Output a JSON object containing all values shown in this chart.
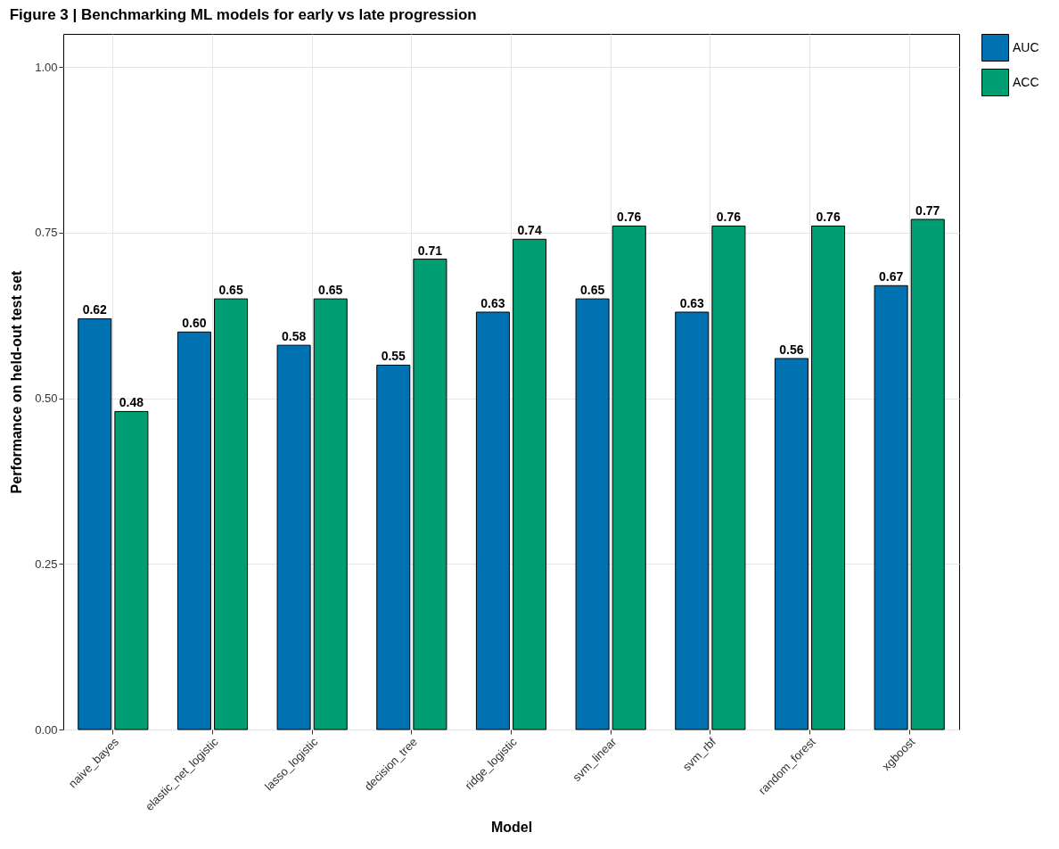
{
  "chart_data": {
    "type": "bar",
    "title": "Figure 3 | Benchmarking ML models for early vs late progression",
    "xlabel": "Model",
    "ylabel": "Performance on held-out test set",
    "categories": [
      "naive_bayes",
      "elastic_net_logistic",
      "lasso_logistic",
      "decision_tree",
      "ridge_logistic",
      "svm_linear",
      "svm_rbf",
      "random_forest",
      "xgboost"
    ],
    "series": [
      {
        "name": "AUC",
        "color": "#0072b2",
        "values": [
          0.62,
          0.6,
          0.58,
          0.55,
          0.63,
          0.65,
          0.63,
          0.56,
          0.67
        ],
        "value_labels": [
          "0.62",
          "0.60",
          "0.58",
          "0.55",
          "0.63",
          "0.65",
          "0.63",
          "0.56",
          "0.67"
        ]
      },
      {
        "name": "ACC",
        "color": "#009e73",
        "values": [
          0.48,
          0.65,
          0.65,
          0.71,
          0.74,
          0.76,
          0.76,
          0.76,
          0.77
        ],
        "value_labels": [
          "0.48",
          "0.65",
          "0.65",
          "0.71",
          "0.74",
          "0.76",
          "0.76",
          "0.76",
          "0.77"
        ]
      }
    ],
    "ylim": [
      0,
      1.05
    ],
    "yticks": [
      {
        "value": 0,
        "label": "0.00"
      },
      {
        "value": 0.25,
        "label": "0.25"
      },
      {
        "value": 0.5,
        "label": "0.50"
      },
      {
        "value": 0.75,
        "label": "0.75"
      },
      {
        "value": 1,
        "label": "1.00"
      }
    ],
    "grid": true,
    "legend": "right"
  }
}
